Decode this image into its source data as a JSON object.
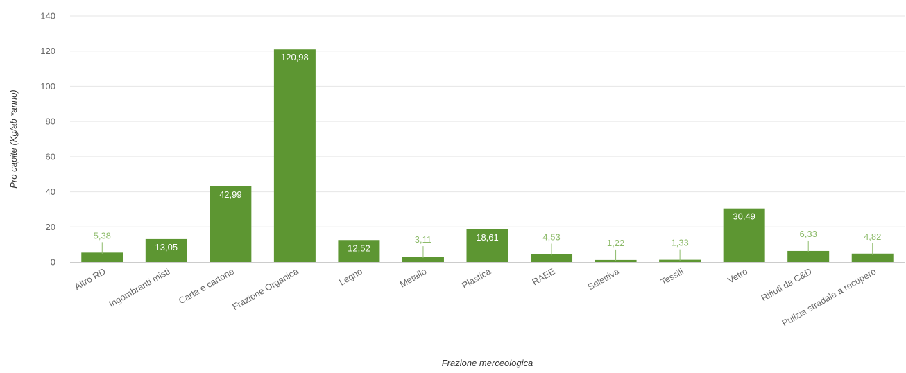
{
  "colors": {
    "bar": "#5d9632",
    "label_inside": "#ffffff",
    "label_outside": "#8dbb6a",
    "grid": "#e6e6e6",
    "tick_text": "#666666"
  },
  "chart_data": {
    "type": "bar",
    "title": "",
    "xlabel": "Frazione merceologica",
    "ylabel": "Pro capite (Kg/ab *anno)",
    "ylim": [
      0,
      140
    ],
    "yticks": [
      "0",
      "20",
      "40",
      "60",
      "80",
      "100",
      "120",
      "140"
    ],
    "grid": true,
    "categories": [
      "Altro RD",
      "Ingombranti misti",
      "Carta e cartone",
      "Frazione Organica",
      "Legno",
      "Metallo",
      "Plastica",
      "RAEE",
      "Selettiva",
      "Tessili",
      "Vetro",
      "Rifiuti da C&D",
      "Pulizia stradale a recupero"
    ],
    "values": [
      5.38,
      13.05,
      42.99,
      120.98,
      12.52,
      3.11,
      18.61,
      4.53,
      1.22,
      1.33,
      30.49,
      6.33,
      4.82
    ],
    "value_labels": [
      "5,38",
      "13,05",
      "42,99",
      "120,98",
      "12,52",
      "3,11",
      "18,61",
      "4,53",
      "1,22",
      "1,33",
      "30,49",
      "6,33",
      "4,82"
    ]
  }
}
